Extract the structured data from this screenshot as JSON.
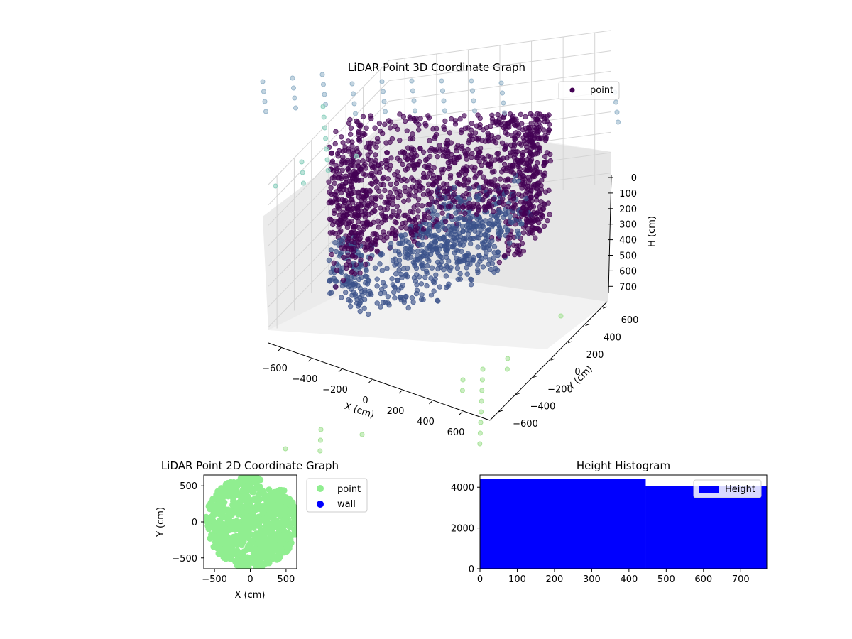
{
  "chart_data": [
    {
      "type": "scatter",
      "title": "LiDAR Point 3D Coordinate Graph",
      "xlabel": "X (cm)",
      "ylabel": "Y (cm)",
      "zlabel": "H (cm)",
      "x_ticks": [
        -600,
        -400,
        -200,
        0,
        200,
        400,
        600
      ],
      "y_ticks": [
        -600,
        -400,
        -200,
        0,
        200,
        400,
        600
      ],
      "z_ticks": [
        0,
        100,
        200,
        300,
        400,
        500,
        600,
        700
      ],
      "z_axis_inverted": true,
      "legend": [
        "point"
      ],
      "legend_position": "upper right",
      "grid": true,
      "point_color": "#440154",
      "distant_point_colors": [
        "#9ab7cc",
        "#8fd1c0",
        "#a8e29a"
      ],
      "description_shape": "dense ring-shaped wall of points around a room, radius about 600 cm, heights 0-750 cm"
    },
    {
      "type": "scatter",
      "title": "LiDAR Point 2D Coordinate Graph",
      "xlabel": "X (cm)",
      "ylabel": "Y (cm)",
      "x_ticks": [
        -500,
        0,
        500
      ],
      "y_ticks": [
        -500,
        0,
        500
      ],
      "xlim": [
        -650,
        650
      ],
      "ylim": [
        -650,
        650
      ],
      "series": [
        {
          "name": "point",
          "color": "#90ee90"
        },
        {
          "name": "wall",
          "color": "#0000ff"
        }
      ],
      "legend_position": "outside right"
    },
    {
      "type": "bar",
      "title": "Height Histogram",
      "xlim": [
        0,
        770
      ],
      "ylim": [
        0,
        4600
      ],
      "x_ticks": [
        0,
        100,
        200,
        300,
        400,
        500,
        600,
        700
      ],
      "y_ticks": [
        0,
        2000,
        4000
      ],
      "bins": [
        {
          "x0": 0,
          "x1": 445,
          "value": 4420
        },
        {
          "x0": 445,
          "x1": 770,
          "value": 4060
        }
      ],
      "series": [
        {
          "name": "Height",
          "color": "#0000ff"
        }
      ],
      "legend_position": "upper right"
    }
  ]
}
